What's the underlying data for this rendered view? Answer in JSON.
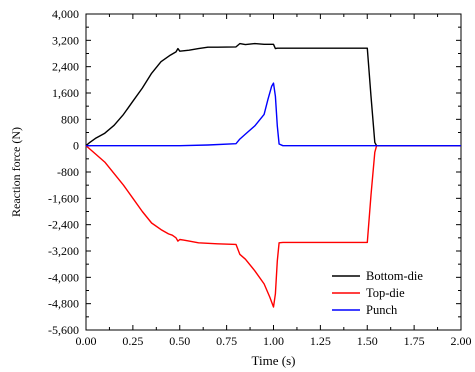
{
  "chart_data": {
    "type": "line",
    "xlabel": "Time (s)",
    "ylabel": "Reaction force (N)",
    "xlim": [
      0,
      2.0
    ],
    "ylim": [
      -5600,
      4000
    ],
    "x_ticks": [
      "0.00",
      "0.25",
      "0.50",
      "0.75",
      "1.00",
      "1.25",
      "1.50",
      "1.75",
      "2.00"
    ],
    "x_tick_values": [
      0,
      0.25,
      0.5,
      0.75,
      1.0,
      1.25,
      1.5,
      1.75,
      2.0
    ],
    "y_ticks": [
      "4,000",
      "3,200",
      "2,400",
      "1,600",
      "800",
      "0",
      "-800",
      "-1,600",
      "-2,400",
      "-3,200",
      "-4,000",
      "-4,800",
      "-5,600"
    ],
    "y_tick_values": [
      4000,
      3200,
      2400,
      1600,
      800,
      0,
      -800,
      -1600,
      -2400,
      -3200,
      -4000,
      -4800,
      -5600
    ],
    "grid": false,
    "legend_position": "bottom-right",
    "series": [
      {
        "name": "Bottom-die",
        "color": "#000000",
        "x": [
          0,
          0.02,
          0.05,
          0.1,
          0.15,
          0.2,
          0.25,
          0.3,
          0.35,
          0.4,
          0.45,
          0.48,
          0.49,
          0.5,
          0.55,
          0.6,
          0.65,
          0.7,
          0.8,
          0.82,
          0.85,
          0.9,
          0.95,
          1.0,
          1.01,
          1.02,
          1.05,
          1.5,
          1.52,
          1.54,
          1.55,
          2.0
        ],
        "y": [
          0,
          100,
          220,
          380,
          620,
          950,
          1350,
          1750,
          2200,
          2550,
          2750,
          2850,
          2950,
          2870,
          2900,
          2950,
          2990,
          2990,
          3000,
          3100,
          3070,
          3100,
          3080,
          3080,
          2950,
          2960,
          2960,
          2960,
          1500,
          100,
          0,
          0
        ]
      },
      {
        "name": "Top-die",
        "color": "#ff0000",
        "x": [
          0,
          0.02,
          0.05,
          0.1,
          0.15,
          0.2,
          0.25,
          0.3,
          0.35,
          0.4,
          0.44,
          0.46,
          0.48,
          0.49,
          0.5,
          0.52,
          0.55,
          0.6,
          0.7,
          0.8,
          0.82,
          0.85,
          0.9,
          0.95,
          0.98,
          1.0,
          1.01,
          1.02,
          1.03,
          1.05,
          1.5,
          1.52,
          1.54,
          1.55,
          2.0
        ],
        "y": [
          0,
          -100,
          -250,
          -500,
          -850,
          -1200,
          -1600,
          -2000,
          -2350,
          -2550,
          -2680,
          -2720,
          -2800,
          -2900,
          -2850,
          -2870,
          -2900,
          -2950,
          -2980,
          -3000,
          -3300,
          -3450,
          -3800,
          -4200,
          -4600,
          -4900,
          -4500,
          -3500,
          -2950,
          -2940,
          -2940,
          -1500,
          -200,
          0,
          0
        ]
      },
      {
        "name": "Punch",
        "color": "#0000ff",
        "x": [
          0,
          0.5,
          0.65,
          0.8,
          0.82,
          0.85,
          0.9,
          0.95,
          0.97,
          0.99,
          1.0,
          1.01,
          1.02,
          1.03,
          1.05,
          2.0
        ],
        "y": [
          0,
          0,
          20,
          60,
          200,
          350,
          600,
          950,
          1400,
          1800,
          1900,
          1500,
          600,
          50,
          0,
          0
        ]
      }
    ]
  }
}
